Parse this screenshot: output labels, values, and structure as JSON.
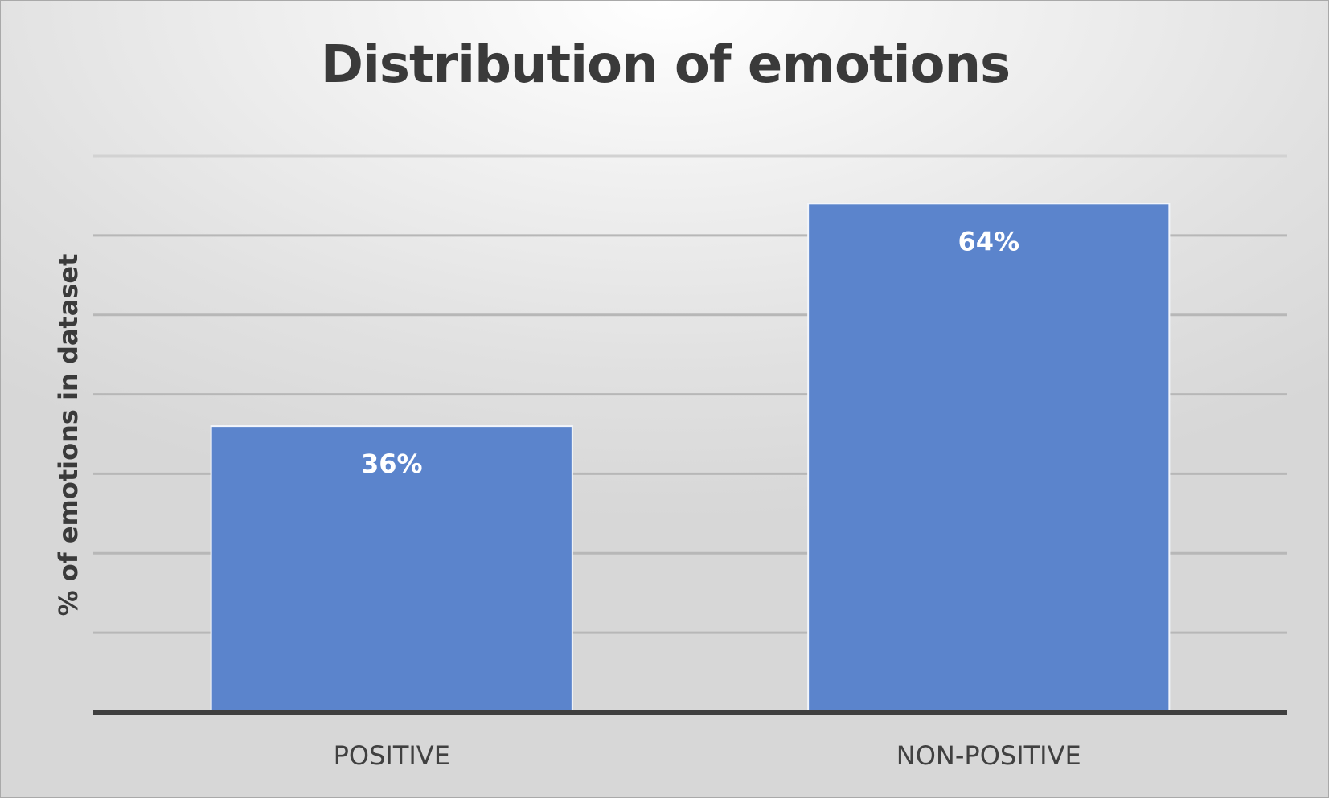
{
  "chart_data": {
    "type": "bar",
    "title": "Distribution of emotions",
    "xlabel": "",
    "ylabel": "% of emotions in dataset",
    "categories": [
      "POSITIVE",
      "NON-POSITIVE"
    ],
    "values": [
      36,
      64
    ],
    "data_labels": [
      "36%",
      "64%"
    ],
    "ylim": [
      0,
      70
    ],
    "grid": true,
    "legend": "none",
    "bar_color": "#5b84cc"
  }
}
